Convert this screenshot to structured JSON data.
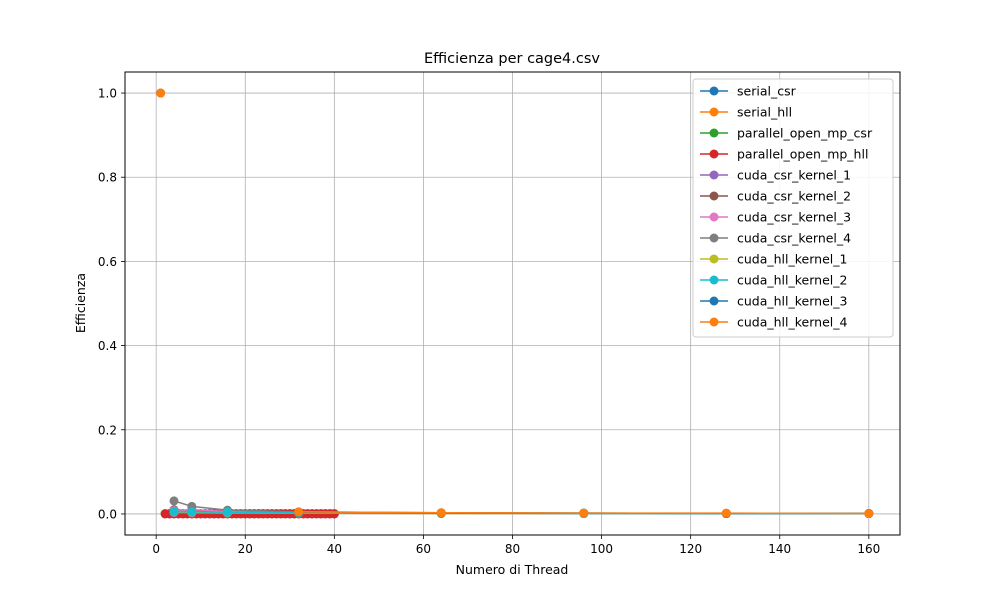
{
  "chart_data": {
    "type": "line",
    "title": "Efficienza per cage4.csv",
    "xlabel": "Numero di Thread",
    "ylabel": "Efficienza",
    "xlim": [
      -7,
      167
    ],
    "ylim": [
      -0.05,
      1.05
    ],
    "xticks": [
      0,
      20,
      40,
      60,
      80,
      100,
      120,
      140,
      160
    ],
    "yticks": [
      0.0,
      0.2,
      0.4,
      0.6,
      0.8,
      1.0
    ],
    "xtick_labels": [
      "0",
      "20",
      "40",
      "60",
      "80",
      "100",
      "120",
      "140",
      "160"
    ],
    "ytick_labels": [
      "0.0",
      "0.2",
      "0.4",
      "0.6",
      "0.8",
      "1.0"
    ],
    "grid": true,
    "legend_position": "upper right",
    "series": [
      {
        "name": "serial_csr",
        "color": "#1f77b4",
        "x": [
          1
        ],
        "y": [
          1.0
        ]
      },
      {
        "name": "serial_hll",
        "color": "#ff7f0e",
        "x": [
          1
        ],
        "y": [
          1.0
        ]
      },
      {
        "name": "parallel_open_mp_csr",
        "color": "#2ca02c",
        "x": [
          2,
          3,
          4,
          5,
          6,
          7,
          8,
          9,
          10,
          11,
          12,
          13,
          14,
          15,
          16,
          17,
          18,
          19,
          20,
          21,
          22,
          23,
          24,
          25,
          26,
          27,
          28,
          29,
          30,
          31,
          32,
          33,
          34,
          35,
          36,
          37,
          38,
          39,
          40
        ],
        "y": [
          0.001,
          0.001,
          0.001,
          0.001,
          0.001,
          0.001,
          0.001,
          0.001,
          0.001,
          0.001,
          0.001,
          0.001,
          0.001,
          0.001,
          0.001,
          0.001,
          0.001,
          0.001,
          0.001,
          0.001,
          0.001,
          0.001,
          0.001,
          0.001,
          0.001,
          0.001,
          0.001,
          0.001,
          0.001,
          0.001,
          0.001,
          0.001,
          0.001,
          0.001,
          0.001,
          0.001,
          0.001,
          0.001,
          0.001
        ]
      },
      {
        "name": "parallel_open_mp_hll",
        "color": "#d62728",
        "x": [
          2,
          3,
          4,
          5,
          6,
          7,
          8,
          9,
          10,
          11,
          12,
          13,
          14,
          15,
          16,
          17,
          18,
          19,
          20,
          21,
          22,
          23,
          24,
          25,
          26,
          27,
          28,
          29,
          30,
          31,
          32,
          33,
          34,
          35,
          36,
          37,
          38,
          39,
          40
        ],
        "y": [
          0.0,
          0.0,
          0.0,
          0.0,
          0.0,
          0.0,
          0.0,
          0.0,
          0.0,
          0.0,
          0.0,
          0.0,
          0.0,
          0.0,
          0.0,
          0.0,
          0.0,
          0.0,
          0.0,
          0.0,
          0.0,
          0.0,
          0.0,
          0.0,
          0.0,
          0.0,
          0.0,
          0.0,
          0.0,
          0.0,
          0.0,
          0.0,
          0.0,
          0.0,
          0.0,
          0.0,
          0.0,
          0.0,
          0.0
        ]
      },
      {
        "name": "cuda_csr_kernel_1",
        "color": "#9467bd",
        "x": [
          4,
          8,
          16,
          32,
          64,
          96,
          128,
          160
        ],
        "y": [
          0.003,
          0.002,
          0.002,
          0.002,
          0.001,
          0.001,
          0.001,
          0.001
        ]
      },
      {
        "name": "cuda_csr_kernel_2",
        "color": "#8c564b",
        "x": [
          4,
          8,
          16,
          32,
          64,
          96,
          128,
          160
        ],
        "y": [
          0.01,
          0.008,
          0.005,
          0.003,
          0.002,
          0.001,
          0.001,
          0.001
        ]
      },
      {
        "name": "cuda_csr_kernel_3",
        "color": "#e377c2",
        "x": [
          4,
          8,
          16,
          32,
          64,
          96,
          128,
          160
        ],
        "y": [
          0.008,
          0.01,
          0.006,
          0.003,
          0.002,
          0.001,
          0.001,
          0.001
        ]
      },
      {
        "name": "cuda_csr_kernel_4",
        "color": "#7f7f7f",
        "x": [
          4,
          8,
          16,
          32,
          64,
          96,
          128,
          160
        ],
        "y": [
          0.031,
          0.018,
          0.009,
          0.005,
          0.003,
          0.002,
          0.001,
          0.001
        ]
      },
      {
        "name": "cuda_hll_kernel_1",
        "color": "#bcbd22",
        "x": [
          4,
          8,
          16,
          32,
          64,
          96,
          128,
          160
        ],
        "y": [
          0.005,
          0.004,
          0.003,
          0.002,
          0.001,
          0.001,
          0.001,
          0.001
        ]
      },
      {
        "name": "cuda_hll_kernel_2",
        "color": "#17becf",
        "x": [
          4,
          8,
          16,
          32,
          64,
          96,
          128,
          160
        ],
        "y": [
          0.006,
          0.005,
          0.004,
          0.003,
          0.002,
          0.001,
          0.001,
          0.001
        ]
      },
      {
        "name": "cuda_hll_kernel_3",
        "color": "#1f77b4",
        "x": [
          32,
          64,
          96,
          128,
          160
        ],
        "y": [
          0.004,
          0.002,
          0.002,
          0.001,
          0.001
        ]
      },
      {
        "name": "cuda_hll_kernel_4",
        "color": "#ff7f0e",
        "x": [
          32,
          64,
          96,
          128,
          160
        ],
        "y": [
          0.005,
          0.003,
          0.002,
          0.002,
          0.001
        ]
      }
    ]
  }
}
